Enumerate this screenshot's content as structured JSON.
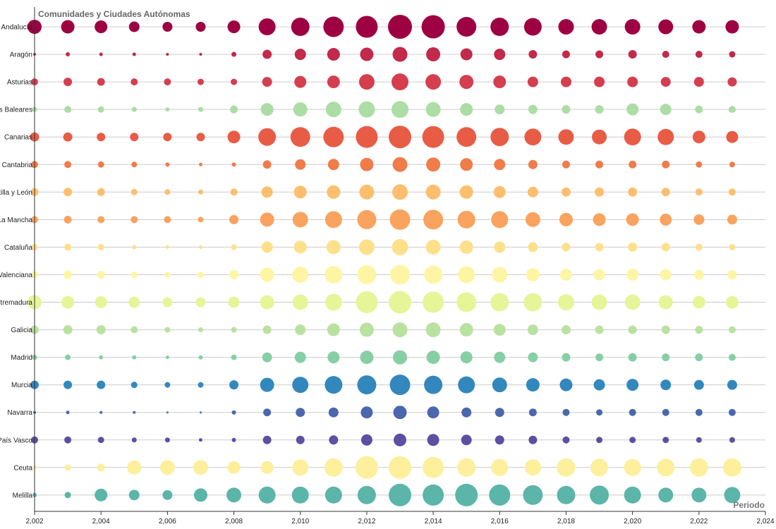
{
  "chart_data": {
    "type": "scatter",
    "subtype": "bubble-matrix",
    "title": "Comunidades y Ciudades Autónomas",
    "xlabel": "Periodo",
    "ylabel": "",
    "xlim": [
      2002,
      2024
    ],
    "x_ticks": [
      2002,
      2004,
      2006,
      2008,
      2010,
      2012,
      2014,
      2016,
      2018,
      2020,
      2022,
      2024
    ],
    "x_tick_labels": [
      "2,002",
      "2,004",
      "2,006",
      "2,008",
      "2,010",
      "2,012",
      "2,014",
      "2,016",
      "2,018",
      "2,020",
      "2,022",
      "2,024"
    ],
    "years": [
      2002,
      2003,
      2004,
      2005,
      2006,
      2007,
      2008,
      2009,
      2010,
      2011,
      2012,
      2013,
      2014,
      2015,
      2016,
      2017,
      2018,
      2019,
      2020,
      2021,
      2022,
      2023
    ],
    "grid": true,
    "series": [
      {
        "name": "Andalucía",
        "label": "Andalucía",
        "color": "#9e0142",
        "values": [
          10,
          9.5,
          9,
          7.5,
          7,
          7,
          9,
          12,
          13,
          14.5,
          15.5,
          17,
          16.5,
          14,
          13,
          12.5,
          11,
          11,
          11,
          10.5,
          9.5,
          9.5
        ]
      },
      {
        "name": "Aragón",
        "label": "Aragón",
        "color": "#c2294a",
        "values": [
          2,
          3,
          2.5,
          2.5,
          2,
          2,
          3.5,
          6.5,
          8,
          9,
          9.5,
          10.5,
          10,
          8.5,
          8,
          6,
          5.5,
          5.5,
          6,
          5,
          5,
          4.5
        ]
      },
      {
        "name": "Asturias",
        "label": "Asturias",
        "color": "#d53e4f",
        "values": [
          5,
          6,
          5.5,
          5,
          5,
          4.5,
          4.5,
          7,
          8.5,
          9,
          11,
          12,
          11,
          10,
          9,
          7.5,
          7.5,
          7.5,
          7.5,
          7,
          7,
          6.5
        ]
      },
      {
        "name": "Illes Balears",
        "label": "Illes Baleares",
        "color": "#abdda4",
        "values": [
          3.5,
          5,
          4.5,
          3.5,
          3,
          3.5,
          5.5,
          9,
          10,
          11,
          11.5,
          12,
          10.5,
          9,
          7,
          6.5,
          6,
          6,
          8.5,
          8,
          5.5,
          5
        ]
      },
      {
        "name": "Canarias",
        "label": "Canarias",
        "color": "#e85c46",
        "values": [
          6.5,
          6.5,
          6,
          6,
          6,
          6,
          9,
          12.5,
          14,
          14.5,
          15.5,
          16,
          15.5,
          14,
          13,
          12,
          11,
          10.5,
          12,
          11.5,
          9,
          8.5
        ]
      },
      {
        "name": "Cantabria",
        "label": "Cantabria",
        "color": "#f07c4a",
        "values": [
          5,
          5,
          4.5,
          4,
          3,
          2.5,
          3,
          6,
          7.5,
          8,
          9.5,
          10.5,
          10,
          9,
          8,
          6.5,
          5.5,
          5.5,
          5.5,
          5.5,
          4.5,
          4
        ]
      },
      {
        "name": "Castilla y León",
        "label": "Castilla y León",
        "color": "#fdbe6e",
        "values": [
          5.5,
          6,
          5.5,
          4.5,
          4,
          3.5,
          5,
          8,
          9,
          9.5,
          10.5,
          11,
          10.5,
          9.5,
          8.5,
          7.5,
          6.5,
          6.5,
          6.5,
          6,
          5,
          5
        ]
      },
      {
        "name": "Castilla-La Mancha",
        "label": "Castilla-La Mancha",
        "color": "#f9a35e",
        "values": [
          5,
          5.5,
          5,
          5,
          5,
          4,
          6.5,
          10,
          11,
          12,
          13.5,
          14.5,
          14,
          12.5,
          12,
          10.5,
          9.5,
          9,
          9,
          8.5,
          7.5,
          7
        ]
      },
      {
        "name": "Cataluña",
        "label": "Cataluña",
        "color": "#fee08b",
        "values": [
          4.5,
          5,
          4.5,
          3,
          2.5,
          2.5,
          4,
          8,
          9,
          10,
          11,
          11.5,
          10.5,
          9.5,
          8,
          7,
          6,
          6,
          6.5,
          6,
          5,
          4.5
        ]
      },
      {
        "name": "Comunitat Valenciana",
        "label": "Comunitat Valenciana",
        "color": "#fef5a4",
        "values": [
          5,
          6,
          5.5,
          4.5,
          4,
          4.5,
          6.5,
          10,
          11.5,
          12.5,
          13.5,
          14,
          13,
          12,
          11,
          9.5,
          8.5,
          8,
          8.5,
          8,
          7,
          6.5
        ]
      },
      {
        "name": "Extremadura",
        "label": "Extremadura",
        "color": "#e6f598",
        "values": [
          10,
          9,
          8.5,
          8,
          7,
          7,
          8,
          10,
          11,
          12,
          15.5,
          16,
          15,
          14,
          13,
          13,
          11.5,
          11,
          11,
          10,
          9,
          9
        ]
      },
      {
        "name": "Galicia",
        "label": "Galicia",
        "color": "#b9e1a0",
        "values": [
          6,
          6.5,
          6.5,
          5,
          4,
          3.5,
          4,
          6,
          7.5,
          9,
          10,
          10.5,
          10.5,
          9.5,
          8.5,
          7.5,
          6.5,
          6,
          6,
          6,
          5.5,
          5
        ]
      },
      {
        "name": "Madrid",
        "label": "Madrid",
        "color": "#86cfa5",
        "values": [
          3.5,
          4,
          3,
          3,
          2.5,
          3,
          4,
          7,
          8,
          8.5,
          9.5,
          10,
          9.5,
          8.5,
          8,
          7,
          6,
          5.5,
          6,
          5.5,
          5.5,
          5
        ]
      },
      {
        "name": "Murcia",
        "label": "Murcia",
        "color": "#3288bd",
        "values": [
          6,
          6,
          6,
          4.5,
          4,
          4,
          6.5,
          10,
          11.5,
          12.5,
          13.5,
          14.5,
          13,
          12,
          10.5,
          9.5,
          9,
          8,
          8.5,
          7.5,
          7,
          7
        ]
      },
      {
        "name": "Navarra",
        "label": "Navarra",
        "color": "#4b67ad",
        "values": [
          2,
          2.5,
          2,
          2,
          1.5,
          1.5,
          3,
          5.5,
          6.5,
          7,
          8.5,
          9.5,
          8.5,
          7,
          6.5,
          5.5,
          5,
          4.5,
          5,
          5,
          5,
          5
        ]
      },
      {
        "name": "País Vasco",
        "label": "País Vasco",
        "color": "#5e4fa2",
        "values": [
          5,
          5,
          4.5,
          3.5,
          3.5,
          2.5,
          3,
          6,
          6,
          6.5,
          8,
          9,
          8.5,
          7.5,
          6.5,
          6,
          5,
          4.5,
          4.5,
          4.5,
          4,
          4
        ]
      },
      {
        "name": "Ceuta",
        "label": "Ceuta",
        "color": "#fdef9b",
        "values": [
          3,
          4.5,
          5.5,
          10,
          10.5,
          10.5,
          9,
          9,
          11.5,
          13,
          16,
          16,
          15,
          13,
          12,
          11.5,
          13,
          12.5,
          12,
          12.5,
          13,
          13
        ]
      },
      {
        "name": "Melilla",
        "label": "Melilla",
        "color": "#5bb5a8",
        "values": [
          3,
          4.5,
          9,
          7.5,
          7,
          9.5,
          10.5,
          12,
          12,
          12,
          13,
          16,
          15,
          16,
          15,
          14,
          13,
          13.5,
          12,
          10.5,
          10.5,
          11.5
        ]
      }
    ]
  }
}
